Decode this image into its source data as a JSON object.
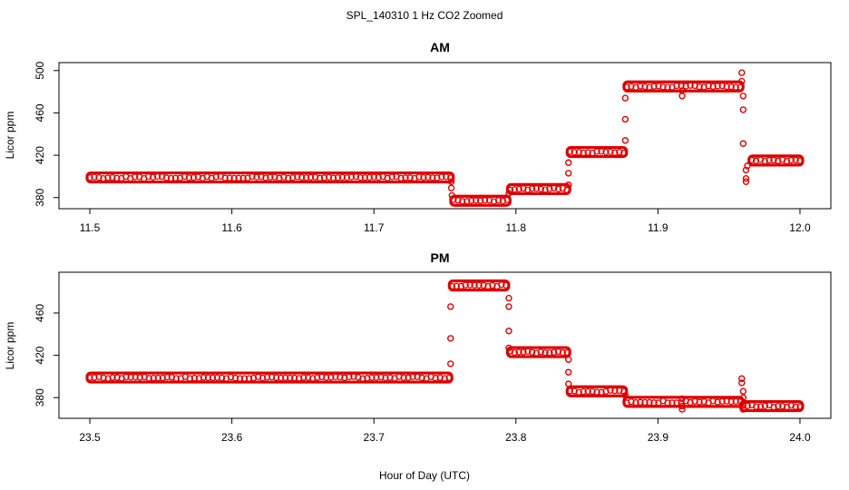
{
  "figure": {
    "title": "SPL_140310  1 Hz CO2 Zoomed",
    "xlabel": "Hour of Day (UTC)"
  },
  "chart_data": [
    {
      "type": "scatter",
      "title": "AM",
      "xlabel": "",
      "ylabel": "Licor ppm",
      "xlim": [
        11.5,
        12.0
      ],
      "ylim": [
        375,
        502
      ],
      "x_ticks": [
        "11.5",
        "11.6",
        "11.7",
        "11.8",
        "11.9",
        "12.0"
      ],
      "y_ticks": [
        "380",
        "420",
        "460",
        "500"
      ],
      "marker": "open-circle",
      "color": "#e00000",
      "grid": false,
      "segments": [
        {
          "x_start": 11.5,
          "x_end": 11.754,
          "y": 399
        },
        {
          "x_start": 11.756,
          "x_end": 11.794,
          "y": 377
        },
        {
          "x_start": 11.796,
          "x_end": 11.836,
          "y": 388
        },
        {
          "x_start": 11.838,
          "x_end": 11.876,
          "y": 423
        },
        {
          "x_start": 11.878,
          "x_end": 11.958,
          "y": 485
        },
        {
          "x_start": 11.966,
          "x_end": 12.0,
          "y": 415
        }
      ],
      "points": [
        {
          "x": 11.7545,
          "y": 395
        },
        {
          "x": 11.7545,
          "y": 389
        },
        {
          "x": 11.755,
          "y": 382
        },
        {
          "x": 11.795,
          "y": 384
        },
        {
          "x": 11.837,
          "y": 392
        },
        {
          "x": 11.837,
          "y": 403
        },
        {
          "x": 11.837,
          "y": 413
        },
        {
          "x": 11.877,
          "y": 434
        },
        {
          "x": 11.877,
          "y": 454
        },
        {
          "x": 11.877,
          "y": 474
        },
        {
          "x": 11.917,
          "y": 476
        },
        {
          "x": 11.917,
          "y": 481
        },
        {
          "x": 11.959,
          "y": 498
        },
        {
          "x": 11.959,
          "y": 490
        },
        {
          "x": 11.96,
          "y": 476
        },
        {
          "x": 11.96,
          "y": 463
        },
        {
          "x": 11.96,
          "y": 431
        },
        {
          "x": 11.962,
          "y": 406
        },
        {
          "x": 11.962,
          "y": 398
        },
        {
          "x": 11.962,
          "y": 395
        },
        {
          "x": 11.963,
          "y": 410
        }
      ]
    },
    {
      "type": "scatter",
      "title": "PM",
      "xlabel": "",
      "ylabel": "Licor ppm",
      "xlim": [
        23.5,
        24.0
      ],
      "ylim": [
        366,
        493
      ],
      "x_ticks": [
        "23.5",
        "23.6",
        "23.7",
        "23.8",
        "23.9",
        "24.0"
      ],
      "y_ticks": [
        "380",
        "420",
        "460"
      ],
      "marker": "open-circle",
      "color": "#e00000",
      "grid": false,
      "segments": [
        {
          "x_start": 23.5,
          "x_end": 23.753,
          "y": 399
        },
        {
          "x_start": 23.755,
          "x_end": 23.793,
          "y": 486
        },
        {
          "x_start": 23.796,
          "x_end": 23.836,
          "y": 423
        },
        {
          "x_start": 23.838,
          "x_end": 23.876,
          "y": 386
        },
        {
          "x_start": 23.878,
          "x_end": 23.958,
          "y": 376
        },
        {
          "x_start": 23.96,
          "x_end": 24.0,
          "y": 372
        }
      ],
      "points": [
        {
          "x": 23.754,
          "y": 412
        },
        {
          "x": 23.754,
          "y": 436
        },
        {
          "x": 23.754,
          "y": 466
        },
        {
          "x": 23.795,
          "y": 474
        },
        {
          "x": 23.795,
          "y": 466
        },
        {
          "x": 23.795,
          "y": 443
        },
        {
          "x": 23.795,
          "y": 427
        },
        {
          "x": 23.837,
          "y": 416
        },
        {
          "x": 23.837,
          "y": 404
        },
        {
          "x": 23.837,
          "y": 393
        },
        {
          "x": 23.877,
          "y": 382
        },
        {
          "x": 23.917,
          "y": 379
        },
        {
          "x": 23.917,
          "y": 372
        },
        {
          "x": 23.917,
          "y": 369
        },
        {
          "x": 23.959,
          "y": 398
        },
        {
          "x": 23.959,
          "y": 394
        },
        {
          "x": 23.96,
          "y": 386
        },
        {
          "x": 23.96,
          "y": 380
        },
        {
          "x": 23.96,
          "y": 369
        }
      ]
    }
  ]
}
